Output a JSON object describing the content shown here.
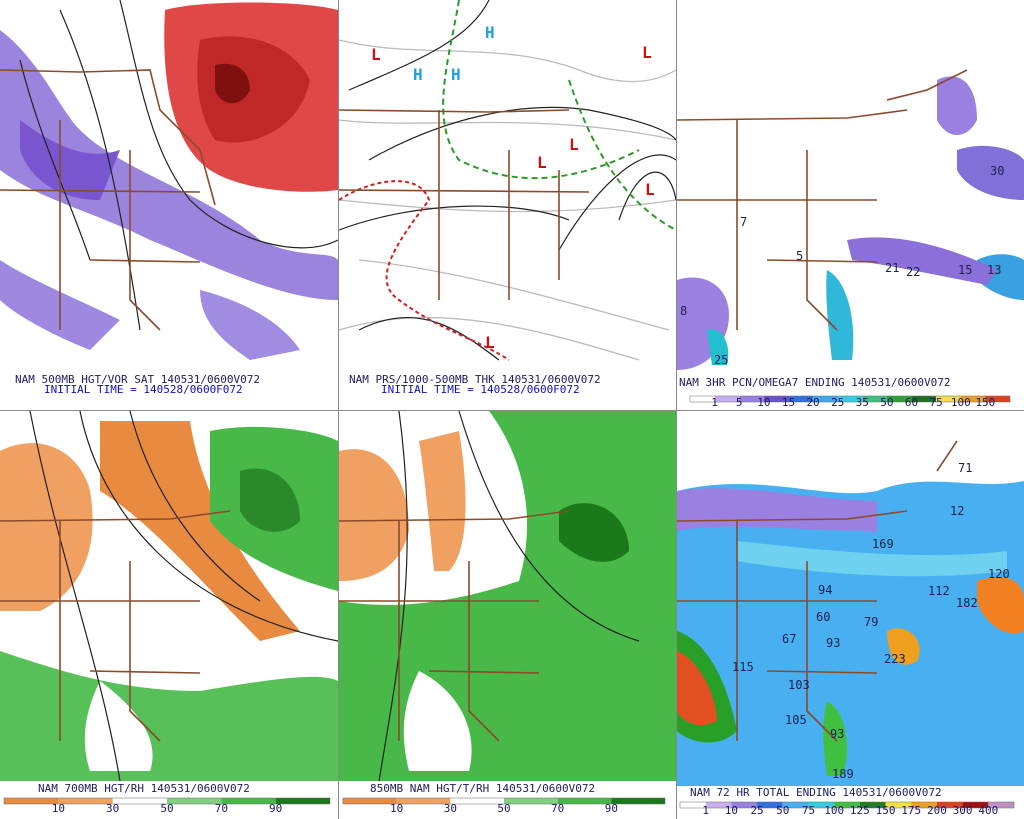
{
  "panels": [
    {
      "title": "NAM 500MB HGT/VOR SAT 140531/0600V072",
      "subtitle": "INITIAL TIME = 140528/0600F072"
    },
    {
      "title": "NAM PRS/1000-500MB THK 140531/0600V072",
      "subtitle": "INITIAL TIME = 140528/0600F072"
    },
    {
      "title": "NAM 3HR PCN/OMEGA7 ENDING 140531/0600V072",
      "labels": [
        "30",
        "21",
        "22",
        "15",
        "13",
        "7",
        "5",
        "8",
        "25"
      ],
      "scale": {
        "labels": [
          "1",
          "5",
          "10",
          "15",
          "20",
          "25",
          "35",
          "50",
          "60",
          "75",
          "100",
          "150"
        ],
        "colors": [
          "#fff",
          "#c8b0f0",
          "#9a80e0",
          "#6a50d0",
          "#3070e0",
          "#40a8f0",
          "#30d0e0",
          "#40c080",
          "#30a030",
          "#207020",
          "#f0e040",
          "#f0a020",
          "#e04020"
        ]
      }
    },
    {
      "title": "NAM 700MB HGT/RH 140531/0600V072",
      "scale": {
        "labels": [
          "10",
          "30",
          "50",
          "70",
          "90"
        ],
        "colors": [
          "#e88a40",
          "#f0a060",
          "#fff",
          "#80d080",
          "#48b848",
          "#1a7a1a"
        ]
      }
    },
    {
      "title": "850MB NAM HGT/T/RH 140531/0600V072",
      "scale": {
        "labels": [
          "10",
          "30",
          "50",
          "70",
          "90"
        ],
        "colors": [
          "#e88a40",
          "#f0a060",
          "#fff",
          "#80d080",
          "#48b848",
          "#1a7a1a"
        ]
      }
    },
    {
      "title": "NAM 72 HR TOTAL ENDING 140531/0600V072",
      "labels": [
        "71",
        "12",
        "169",
        "120",
        "112",
        "182",
        "94",
        "60",
        "79",
        "67",
        "93",
        "115",
        "223",
        "103",
        "105",
        "93",
        "189"
      ],
      "scale": {
        "labels": [
          "1",
          "10",
          "25",
          "50",
          "75",
          "100",
          "125",
          "150",
          "175",
          "200",
          "300",
          "400"
        ],
        "colors": [
          "#fff",
          "#c8b0f0",
          "#9a80e0",
          "#3070e0",
          "#48b0f0",
          "#30d0e0",
          "#40c040",
          "#208020",
          "#f0e040",
          "#f0a020",
          "#e04020",
          "#a01010",
          "#c090c0"
        ]
      }
    }
  ]
}
